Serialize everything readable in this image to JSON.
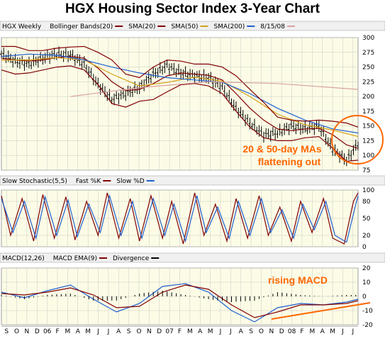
{
  "title": "HGX Housing Sector Index 3-Year Chart",
  "panels": {
    "price": {
      "header": [
        "HGX Weekly",
        "Bollinger Bands(20)",
        "SMA(20)",
        "SMA(50)",
        "SMA(200)",
        "8/15/08"
      ],
      "header_colors": [
        "#000000",
        "#800000",
        "#800000",
        "#d4a017",
        "#1e5fd0",
        "#d8a0a0"
      ]
    },
    "stochastic": {
      "header": [
        "Slow Stochastic(5,5)",
        "Fast %K",
        "Slow %D"
      ],
      "header_colors": [
        "#000000",
        "#800000",
        "#1e5fd0"
      ]
    },
    "macd": {
      "header": [
        "MACD(12,26)",
        "MACD EMA(9)",
        "Divergence"
      ],
      "header_colors": [
        "#1e5fd0",
        "#800000",
        "#000000"
      ]
    }
  },
  "x_labels": [
    "S",
    "O",
    "N",
    "D",
    "06",
    "F",
    "M",
    "A",
    "M",
    "J",
    "J",
    "A",
    "S",
    "O",
    "N",
    "D",
    "07",
    "F",
    "M",
    "A",
    "M",
    "J",
    "J",
    "A",
    "S",
    "O",
    "N",
    "D",
    "08",
    "F",
    "M",
    "A",
    "M",
    "J",
    "J"
  ],
  "annotations": {
    "ma": [
      "20 & 50-day MAs",
      "flattening out"
    ],
    "macd": "rising MACD"
  },
  "colors": {
    "panel_bg": "#fcfce6",
    "grid": "#c8c8c8",
    "price_bar": "#000000",
    "bollinger": "#800000",
    "sma20": "#800000",
    "sma50": "#d4a017",
    "sma200": "#1e5fd0",
    "sma_long": "#d8a0a0",
    "stoch_k": "#800000",
    "stoch_d": "#1e5fd0",
    "macd": "#1e5fd0",
    "macd_signal": "#800000",
    "hist": "#000000",
    "annotation": "#ff6600"
  },
  "chart_data": [
    {
      "type": "line",
      "panel": "price",
      "x_unit": "week",
      "ylim": [
        75,
        300
      ],
      "y_ticks": [
        75,
        100,
        125,
        150,
        175,
        200,
        225,
        250,
        275,
        300
      ],
      "series": [
        {
          "name": "HGX Weekly",
          "x": [
            0,
            6,
            12,
            18,
            24,
            30,
            36,
            42,
            48,
            54,
            60,
            66,
            72,
            78,
            84,
            90,
            96,
            102,
            108,
            114,
            120,
            126,
            132,
            138,
            144,
            150,
            155
          ],
          "y": [
            272,
            260,
            255,
            265,
            272,
            270,
            255,
            220,
            195,
            205,
            215,
            238,
            252,
            240,
            235,
            232,
            215,
            180,
            155,
            135,
            138,
            150,
            145,
            150,
            110,
            92,
            120
          ]
        },
        {
          "name": "SMA(20)",
          "x": [
            0,
            6,
            12,
            18,
            24,
            30,
            36,
            42,
            48,
            54,
            60,
            66,
            72,
            78,
            84,
            90,
            96,
            102,
            108,
            114,
            120,
            126,
            132,
            138,
            144,
            150,
            155
          ],
          "y": [
            265,
            262,
            260,
            262,
            266,
            268,
            265,
            248,
            225,
            210,
            212,
            222,
            235,
            240,
            238,
            236,
            228,
            205,
            180,
            160,
            145,
            142,
            145,
            146,
            135,
            118,
            112
          ]
        },
        {
          "name": "SMA(50)",
          "x": [
            0,
            12,
            24,
            36,
            48,
            60,
            72,
            84,
            96,
            108,
            120,
            132,
            144,
            155
          ],
          "y": [
            262,
            262,
            266,
            262,
            238,
            218,
            224,
            233,
            226,
            200,
            170,
            152,
            143,
            132
          ]
        },
        {
          "name": "SMA(200)",
          "x": [
            0,
            12,
            24,
            36,
            48,
            60,
            72,
            84,
            96,
            108,
            120,
            132,
            144,
            155
          ],
          "y": [
            268,
            272,
            270,
            262,
            250,
            240,
            232,
            228,
            224,
            205,
            180,
            160,
            145,
            138
          ]
        },
        {
          "name": "Bollinger Upper",
          "x": [
            0,
            6,
            12,
            18,
            24,
            30,
            36,
            42,
            48,
            54,
            60,
            66,
            72,
            78,
            84,
            90,
            96,
            102,
            108,
            114,
            120,
            126,
            132,
            138,
            144,
            150,
            155
          ],
          "y": [
            285,
            285,
            278,
            278,
            282,
            284,
            285,
            275,
            262,
            238,
            232,
            250,
            262,
            260,
            255,
            255,
            250,
            235,
            212,
            190,
            165,
            160,
            158,
            160,
            158,
            155,
            148
          ]
        },
        {
          "name": "Bollinger Lower",
          "x": [
            0,
            6,
            12,
            18,
            24,
            30,
            36,
            42,
            48,
            54,
            60,
            66,
            72,
            78,
            84,
            90,
            96,
            102,
            108,
            114,
            120,
            126,
            132,
            138,
            144,
            150,
            155
          ],
          "y": [
            245,
            238,
            240,
            245,
            250,
            252,
            245,
            220,
            188,
            182,
            192,
            195,
            208,
            220,
            222,
            218,
            205,
            175,
            148,
            130,
            125,
            125,
            130,
            132,
            112,
            90,
            92
          ]
        },
        {
          "name": "Long SMA",
          "x": [
            30,
            60,
            90,
            120,
            155
          ],
          "y": [
            200,
            215,
            225,
            222,
            212
          ]
        }
      ]
    },
    {
      "type": "line",
      "panel": "stochastic",
      "ylim": [
        0,
        100
      ],
      "y_ticks": [
        0,
        20,
        50,
        80,
        100
      ],
      "series": [
        {
          "name": "Fast %K",
          "x": [
            0,
            4,
            9,
            14,
            18,
            23,
            28,
            32,
            37,
            42,
            46,
            51,
            56,
            60,
            65,
            70,
            74,
            79,
            84,
            88,
            93,
            98,
            102,
            107,
            112,
            116,
            121,
            126,
            130,
            135,
            140,
            144,
            149,
            153,
            155
          ],
          "y": [
            90,
            20,
            85,
            10,
            92,
            15,
            88,
            12,
            80,
            20,
            95,
            15,
            85,
            10,
            90,
            15,
            80,
            5,
            95,
            20,
            75,
            10,
            85,
            15,
            90,
            20,
            70,
            10,
            80,
            25,
            85,
            15,
            5,
            80,
            95
          ]
        },
        {
          "name": "Slow %D",
          "x": [
            0,
            5,
            10,
            15,
            19,
            24,
            29,
            33,
            38,
            43,
            47,
            52,
            57,
            61,
            66,
            71,
            75,
            80,
            85,
            89,
            94,
            99,
            103,
            108,
            113,
            117,
            122,
            127,
            131,
            136,
            141,
            145,
            150,
            154,
            155
          ],
          "y": [
            85,
            25,
            80,
            15,
            88,
            20,
            82,
            18,
            75,
            25,
            90,
            20,
            80,
            15,
            85,
            20,
            75,
            10,
            90,
            25,
            70,
            15,
            80,
            20,
            85,
            25,
            65,
            15,
            75,
            30,
            80,
            20,
            8,
            75,
            90
          ]
        }
      ]
    },
    {
      "type": "line",
      "panel": "macd",
      "ylim": [
        -20,
        20
      ],
      "y_ticks": [
        -20,
        -10,
        0,
        10,
        20
      ],
      "series": [
        {
          "name": "MACD(12,26)",
          "x": [
            0,
            10,
            20,
            30,
            40,
            50,
            60,
            70,
            80,
            90,
            100,
            110,
            120,
            130,
            140,
            150,
            155
          ],
          "y": [
            3,
            -1,
            4,
            8,
            -2,
            -11,
            -5,
            7,
            9,
            3,
            -10,
            -18,
            -8,
            -5,
            -6,
            -4,
            -2
          ]
        },
        {
          "name": "MACD EMA(9)",
          "x": [
            0,
            10,
            20,
            30,
            40,
            50,
            60,
            70,
            80,
            90,
            100,
            110,
            120,
            130,
            140,
            150,
            155
          ],
          "y": [
            2,
            1,
            3,
            6,
            1,
            -8,
            -7,
            3,
            8,
            5,
            -6,
            -15,
            -11,
            -6,
            -6,
            -5,
            -3
          ]
        }
      ]
    }
  ]
}
